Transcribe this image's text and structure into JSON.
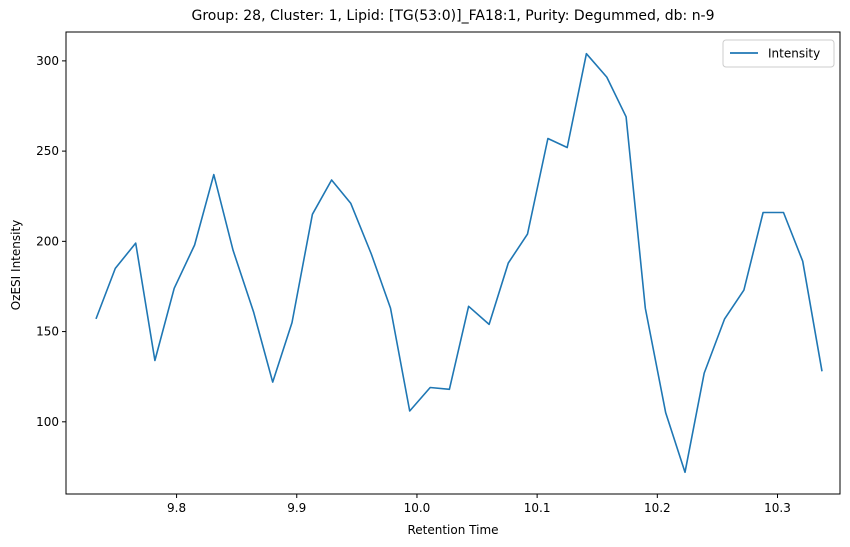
{
  "chart_data": {
    "type": "line",
    "title": "Group: 28, Cluster: 1, Lipid: [TG(53:0)]_FA18:1, Purity: Degummed, db: n-9",
    "xlabel": "Retention Time",
    "ylabel": "OzESI Intensity",
    "xlim": [
      9.708,
      10.352
    ],
    "ylim": [
      60,
      316
    ],
    "xticks": [
      9.8,
      9.9,
      10.0,
      10.1,
      10.2,
      10.3
    ],
    "xtick_labels": [
      "9.8",
      "9.9",
      "10.0",
      "10.1",
      "10.2",
      "10.3"
    ],
    "yticks": [
      100,
      150,
      200,
      250,
      300
    ],
    "ytick_labels": [
      "100",
      "150",
      "200",
      "250",
      "300"
    ],
    "legend_position": "top-right",
    "grid": false,
    "series": [
      {
        "name": "Intensity",
        "color": "#1f77b4",
        "x": [
          9.733,
          9.749,
          9.766,
          9.782,
          9.798,
          9.815,
          9.831,
          9.847,
          9.864,
          9.88,
          9.896,
          9.913,
          9.929,
          9.945,
          9.962,
          9.978,
          9.994,
          10.011,
          10.027,
          10.043,
          10.06,
          10.076,
          10.092,
          10.109,
          10.125,
          10.141,
          10.158,
          10.174,
          10.19,
          10.207,
          10.223,
          10.239,
          10.256,
          10.272,
          10.288,
          10.305,
          10.321,
          10.337
        ],
        "values": [
          157,
          185,
          199,
          134,
          174,
          198,
          237,
          195,
          161,
          122,
          155,
          215,
          234,
          221,
          193,
          163,
          106,
          119,
          118,
          164,
          154,
          188,
          204,
          257,
          252,
          304,
          291,
          269,
          163,
          105,
          72,
          127,
          157,
          173,
          216,
          216,
          189,
          128
        ]
      }
    ]
  }
}
